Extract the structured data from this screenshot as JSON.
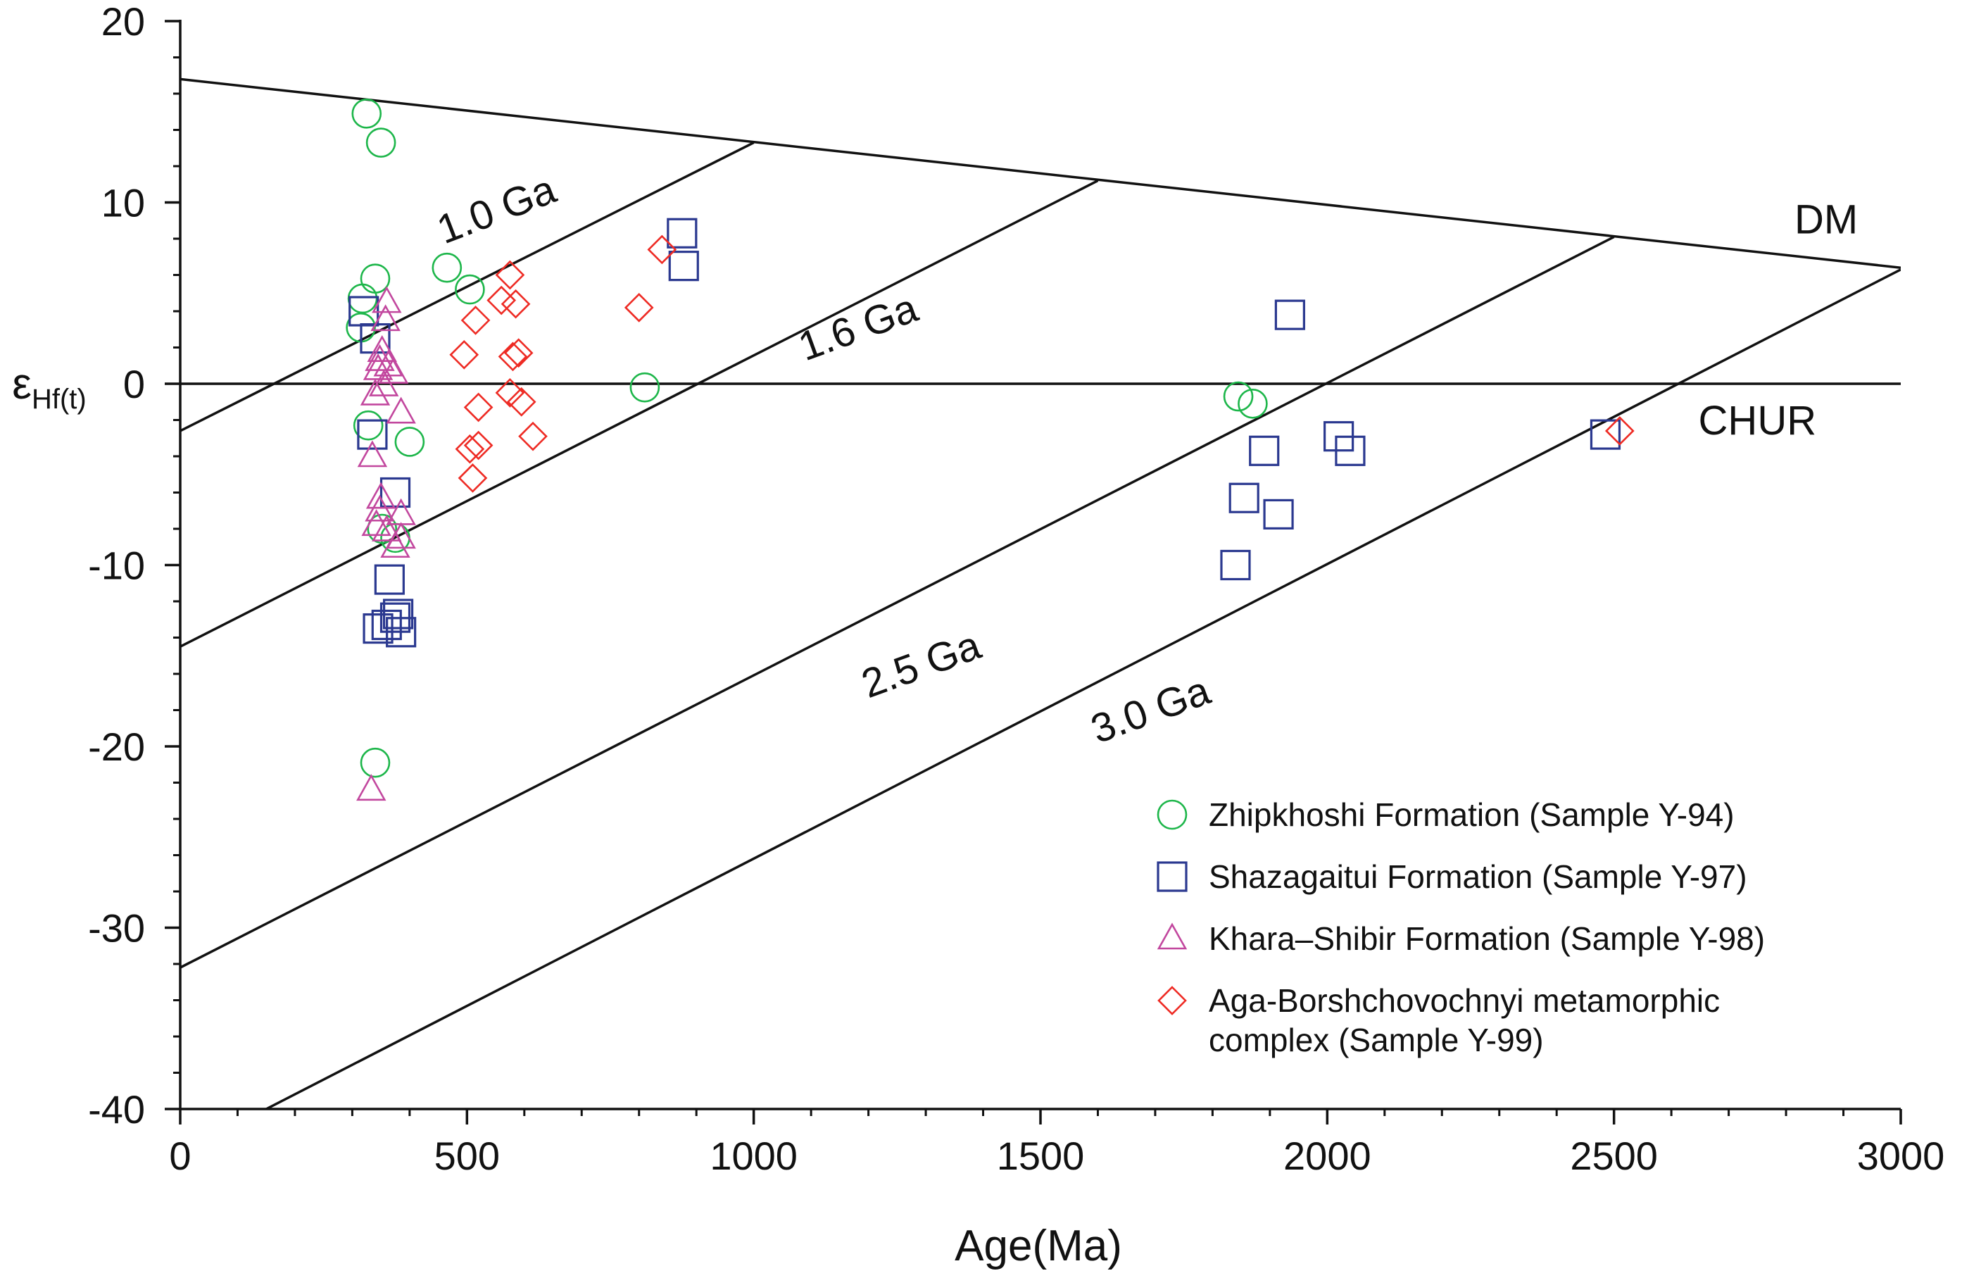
{
  "chart_data": {
    "type": "scatter",
    "xlabel": "Age(Ma)",
    "ylabel": {
      "symbol": "ε",
      "subscript": "Hf(t)"
    },
    "xlim": [
      0,
      3000
    ],
    "ylim": [
      -40,
      20
    ],
    "xticks": [
      0,
      500,
      1000,
      1500,
      2000,
      2500,
      3000
    ],
    "yticks": [
      20,
      10,
      0,
      -10,
      -20,
      -30,
      -40
    ],
    "x_minor_step": 100,
    "y_minor_step": 2,
    "reference_lines": [
      {
        "name": "DM",
        "label": "DM",
        "points": [
          [
            0,
            16.8
          ],
          [
            3000,
            6.4
          ]
        ],
        "label_at": [
          2870,
          8.3
        ],
        "label_angle": 0
      },
      {
        "name": "CHUR",
        "label": "CHUR",
        "points": [
          [
            0,
            0
          ],
          [
            3000,
            0
          ]
        ],
        "label_at": [
          2750,
          -2.8
        ],
        "label_angle": 0
      },
      {
        "name": "1.0 Ga",
        "label": "1.0 Ga",
        "points": [
          [
            0,
            -2.6
          ],
          [
            1000,
            13.3
          ]
        ],
        "label_at": [
          560,
          8.9
        ],
        "label_angle": -21
      },
      {
        "name": "1.6 Ga",
        "label": "1.6 Ga",
        "points": [
          [
            0,
            -14.5
          ],
          [
            1600,
            11.2
          ]
        ],
        "label_at": [
          1190,
          2.4
        ],
        "label_angle": -20
      },
      {
        "name": "2.5 Ga",
        "label": "2.5 Ga",
        "points": [
          [
            0,
            -32.2
          ],
          [
            2500,
            8.1
          ]
        ],
        "label_at": [
          1300,
          -16.2
        ],
        "label_angle": -20
      },
      {
        "name": "3.0 Ga",
        "label": "3.0 Ga",
        "points": [
          [
            150,
            -40
          ],
          [
            3000,
            6.3
          ]
        ],
        "label_at": [
          1700,
          -18.7
        ],
        "label_angle": -20
      }
    ],
    "series": [
      {
        "name": "Zhipkhoshi Formation (Sample Y-94)",
        "marker": "circle",
        "color": "#1db64a",
        "points": [
          [
            325,
            14.9
          ],
          [
            350,
            13.3
          ],
          [
            340,
            5.8
          ],
          [
            465,
            6.4
          ],
          [
            505,
            5.2
          ],
          [
            318,
            4.7
          ],
          [
            315,
            3.1
          ],
          [
            328,
            -2.3
          ],
          [
            400,
            -3.2
          ],
          [
            352,
            -8.0
          ],
          [
            375,
            -8.5
          ],
          [
            810,
            -0.2
          ],
          [
            1845,
            -0.7
          ],
          [
            1870,
            -1.1
          ],
          [
            340,
            -20.9
          ]
        ]
      },
      {
        "name": "Shazagaitui Formation (Sample Y-97)",
        "marker": "square",
        "color": "#2b3990",
        "points": [
          [
            320,
            4.0
          ],
          [
            340,
            2.5
          ],
          [
            335,
            -2.8
          ],
          [
            375,
            -6.0
          ],
          [
            365,
            -10.8
          ],
          [
            360,
            -13.3
          ],
          [
            375,
            -12.9
          ],
          [
            380,
            -12.7
          ],
          [
            385,
            -13.7
          ],
          [
            345,
            -13.5
          ],
          [
            875,
            8.3
          ],
          [
            878,
            6.5
          ],
          [
            1935,
            3.8
          ],
          [
            1855,
            -6.3
          ],
          [
            1890,
            -3.7
          ],
          [
            1915,
            -7.2
          ],
          [
            1840,
            -10.0
          ],
          [
            2020,
            -2.9
          ],
          [
            2040,
            -3.7
          ],
          [
            2485,
            -2.8
          ]
        ]
      },
      {
        "name": "Khara–Shibir Formation (Sample Y-98)",
        "marker": "triangle",
        "color": "#c2479e",
        "points": [
          [
            360,
            4.5
          ],
          [
            358,
            3.5
          ],
          [
            348,
            1.3
          ],
          [
            352,
            1.8
          ],
          [
            363,
            1.0
          ],
          [
            345,
            0.8
          ],
          [
            372,
            0.6
          ],
          [
            355,
            -0.1
          ],
          [
            340,
            -0.6
          ],
          [
            385,
            -1.6
          ],
          [
            335,
            -4.0
          ],
          [
            350,
            -6.3
          ],
          [
            348,
            -7.0
          ],
          [
            385,
            -7.2
          ],
          [
            342,
            -7.8
          ],
          [
            360,
            -8.1
          ],
          [
            385,
            -8.5
          ],
          [
            375,
            -9.0
          ],
          [
            333,
            -22.4
          ]
        ]
      },
      {
        "name": "Aga-Borshchovochnyi metamorphic complex (Sample Y-99)",
        "marker": "diamond",
        "color": "#ee2b24",
        "points": [
          [
            575,
            6.0
          ],
          [
            840,
            7.4
          ],
          [
            560,
            4.6
          ],
          [
            585,
            4.4
          ],
          [
            800,
            4.2
          ],
          [
            515,
            3.5
          ],
          [
            590,
            1.7
          ],
          [
            580,
            1.5
          ],
          [
            495,
            1.6
          ],
          [
            575,
            -0.5
          ],
          [
            595,
            -1.0
          ],
          [
            520,
            -1.3
          ],
          [
            615,
            -2.9
          ],
          [
            520,
            -3.4
          ],
          [
            505,
            -3.6
          ],
          [
            510,
            -5.2
          ],
          [
            2510,
            -2.6
          ]
        ]
      }
    ],
    "legend": {
      "position": "bottom-right",
      "entries": [
        {
          "marker": "circle",
          "color": "#1db64a",
          "lines": [
            "Zhipkhoshi Formation (Sample Y-94)"
          ]
        },
        {
          "marker": "square",
          "color": "#2b3990",
          "lines": [
            "Shazagaitui Formation (Sample Y-97)"
          ]
        },
        {
          "marker": "triangle",
          "color": "#c2479e",
          "lines": [
            "Khara–Shibir Formation (Sample Y-98)"
          ]
        },
        {
          "marker": "diamond",
          "color": "#ee2b24",
          "lines": [
            "Aga-Borshchovochnyi metamorphic",
            "complex (Sample Y-99)"
          ]
        }
      ]
    }
  }
}
